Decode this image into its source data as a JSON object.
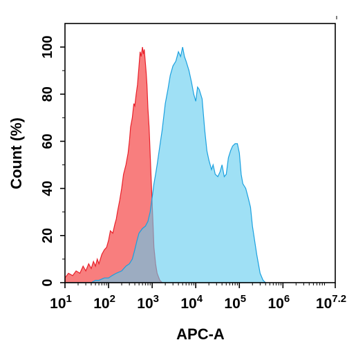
{
  "chart_data": {
    "type": "area",
    "title": "",
    "xlabel": "APC-A",
    "ylabel": "Count (%)",
    "xscale": "log",
    "xlim": [
      10,
      15848932
    ],
    "ylim": [
      0,
      110
    ],
    "grid": false,
    "legend": "none",
    "x_ticks": [
      {
        "value": 10,
        "base": "10",
        "exp": "1"
      },
      {
        "value": 100,
        "base": "10",
        "exp": "2"
      },
      {
        "value": 1000,
        "base": "10",
        "exp": "3"
      },
      {
        "value": 10000,
        "base": "10",
        "exp": "4"
      },
      {
        "value": 100000,
        "base": "10",
        "exp": "5"
      },
      {
        "value": 1000000,
        "base": "10",
        "exp": "6"
      },
      {
        "value": 15848932,
        "base": "10",
        "exp": "7.2"
      }
    ],
    "y_ticks": [
      0,
      20,
      40,
      60,
      80,
      100
    ],
    "series": [
      {
        "color": "#f87777",
        "stroke": "#e8202a",
        "points": [
          [
            10,
            2
          ],
          [
            12,
            4
          ],
          [
            15,
            3
          ],
          [
            18,
            5
          ],
          [
            22,
            4
          ],
          [
            26,
            7
          ],
          [
            30,
            5
          ],
          [
            35,
            8
          ],
          [
            40,
            6
          ],
          [
            45,
            9
          ],
          [
            50,
            7
          ],
          [
            55,
            10
          ],
          [
            60,
            8
          ],
          [
            70,
            12
          ],
          [
            80,
            14
          ],
          [
            90,
            15
          ],
          [
            100,
            18
          ],
          [
            110,
            22
          ],
          [
            125,
            21
          ],
          [
            140,
            25
          ],
          [
            150,
            27
          ],
          [
            160,
            30
          ],
          [
            180,
            35
          ],
          [
            200,
            40
          ],
          [
            220,
            46
          ],
          [
            250,
            50
          ],
          [
            280,
            55
          ],
          [
            300,
            60
          ],
          [
            320,
            66
          ],
          [
            350,
            70
          ],
          [
            380,
            76
          ],
          [
            400,
            75
          ],
          [
            430,
            80
          ],
          [
            460,
            84
          ],
          [
            500,
            92
          ],
          [
            530,
            98
          ],
          [
            560,
            96
          ],
          [
            600,
            100
          ],
          [
            630,
            97
          ],
          [
            660,
            99
          ],
          [
            700,
            93
          ],
          [
            730,
            89
          ],
          [
            760,
            84
          ],
          [
            800,
            74
          ],
          [
            850,
            66
          ],
          [
            900,
            55
          ],
          [
            950,
            44
          ],
          [
            1000,
            34
          ],
          [
            1050,
            24
          ],
          [
            1100,
            15
          ],
          [
            1200,
            8
          ],
          [
            1300,
            4
          ],
          [
            1500,
            1
          ],
          [
            1700,
            0
          ]
        ]
      },
      {
        "color": "#5fcbef",
        "stroke": "#1aa0df",
        "points": [
          [
            10,
            0
          ],
          [
            40,
            0
          ],
          [
            50,
            1
          ],
          [
            60,
            1
          ],
          [
            80,
            2
          ],
          [
            100,
            2
          ],
          [
            120,
            3
          ],
          [
            150,
            4
          ],
          [
            200,
            5
          ],
          [
            250,
            7
          ],
          [
            300,
            8
          ],
          [
            350,
            10
          ],
          [
            400,
            14
          ],
          [
            450,
            18
          ],
          [
            500,
            21
          ],
          [
            600,
            23
          ],
          [
            700,
            24
          ],
          [
            800,
            26
          ],
          [
            900,
            30
          ],
          [
            1000,
            36
          ],
          [
            1100,
            42
          ],
          [
            1200,
            46
          ],
          [
            1300,
            50
          ],
          [
            1500,
            58
          ],
          [
            1700,
            65
          ],
          [
            2000,
            76
          ],
          [
            2300,
            82
          ],
          [
            2600,
            88
          ],
          [
            3000,
            92
          ],
          [
            3500,
            94
          ],
          [
            4000,
            98
          ],
          [
            4500,
            96
          ],
          [
            5000,
            100
          ],
          [
            5500,
            96
          ],
          [
            6000,
            94
          ],
          [
            7000,
            90
          ],
          [
            8000,
            85
          ],
          [
            9000,
            80
          ],
          [
            10000,
            77
          ],
          [
            11000,
            83
          ],
          [
            12000,
            82
          ],
          [
            14000,
            78
          ],
          [
            16000,
            65
          ],
          [
            18000,
            56
          ],
          [
            20000,
            52
          ],
          [
            23000,
            48
          ],
          [
            25000,
            50
          ],
          [
            28000,
            46
          ],
          [
            32000,
            45
          ],
          [
            36000,
            47
          ],
          [
            40000,
            50
          ],
          [
            45000,
            45
          ],
          [
            50000,
            46
          ],
          [
            56000,
            53
          ],
          [
            63000,
            56
          ],
          [
            70000,
            58
          ],
          [
            80000,
            59
          ],
          [
            90000,
            59
          ],
          [
            100000,
            55
          ],
          [
            110000,
            46
          ],
          [
            120000,
            42
          ],
          [
            140000,
            40
          ],
          [
            160000,
            36
          ],
          [
            180000,
            32
          ],
          [
            200000,
            24
          ],
          [
            250000,
            12
          ],
          [
            300000,
            4
          ],
          [
            350000,
            1
          ],
          [
            400000,
            0
          ]
        ]
      }
    ]
  }
}
